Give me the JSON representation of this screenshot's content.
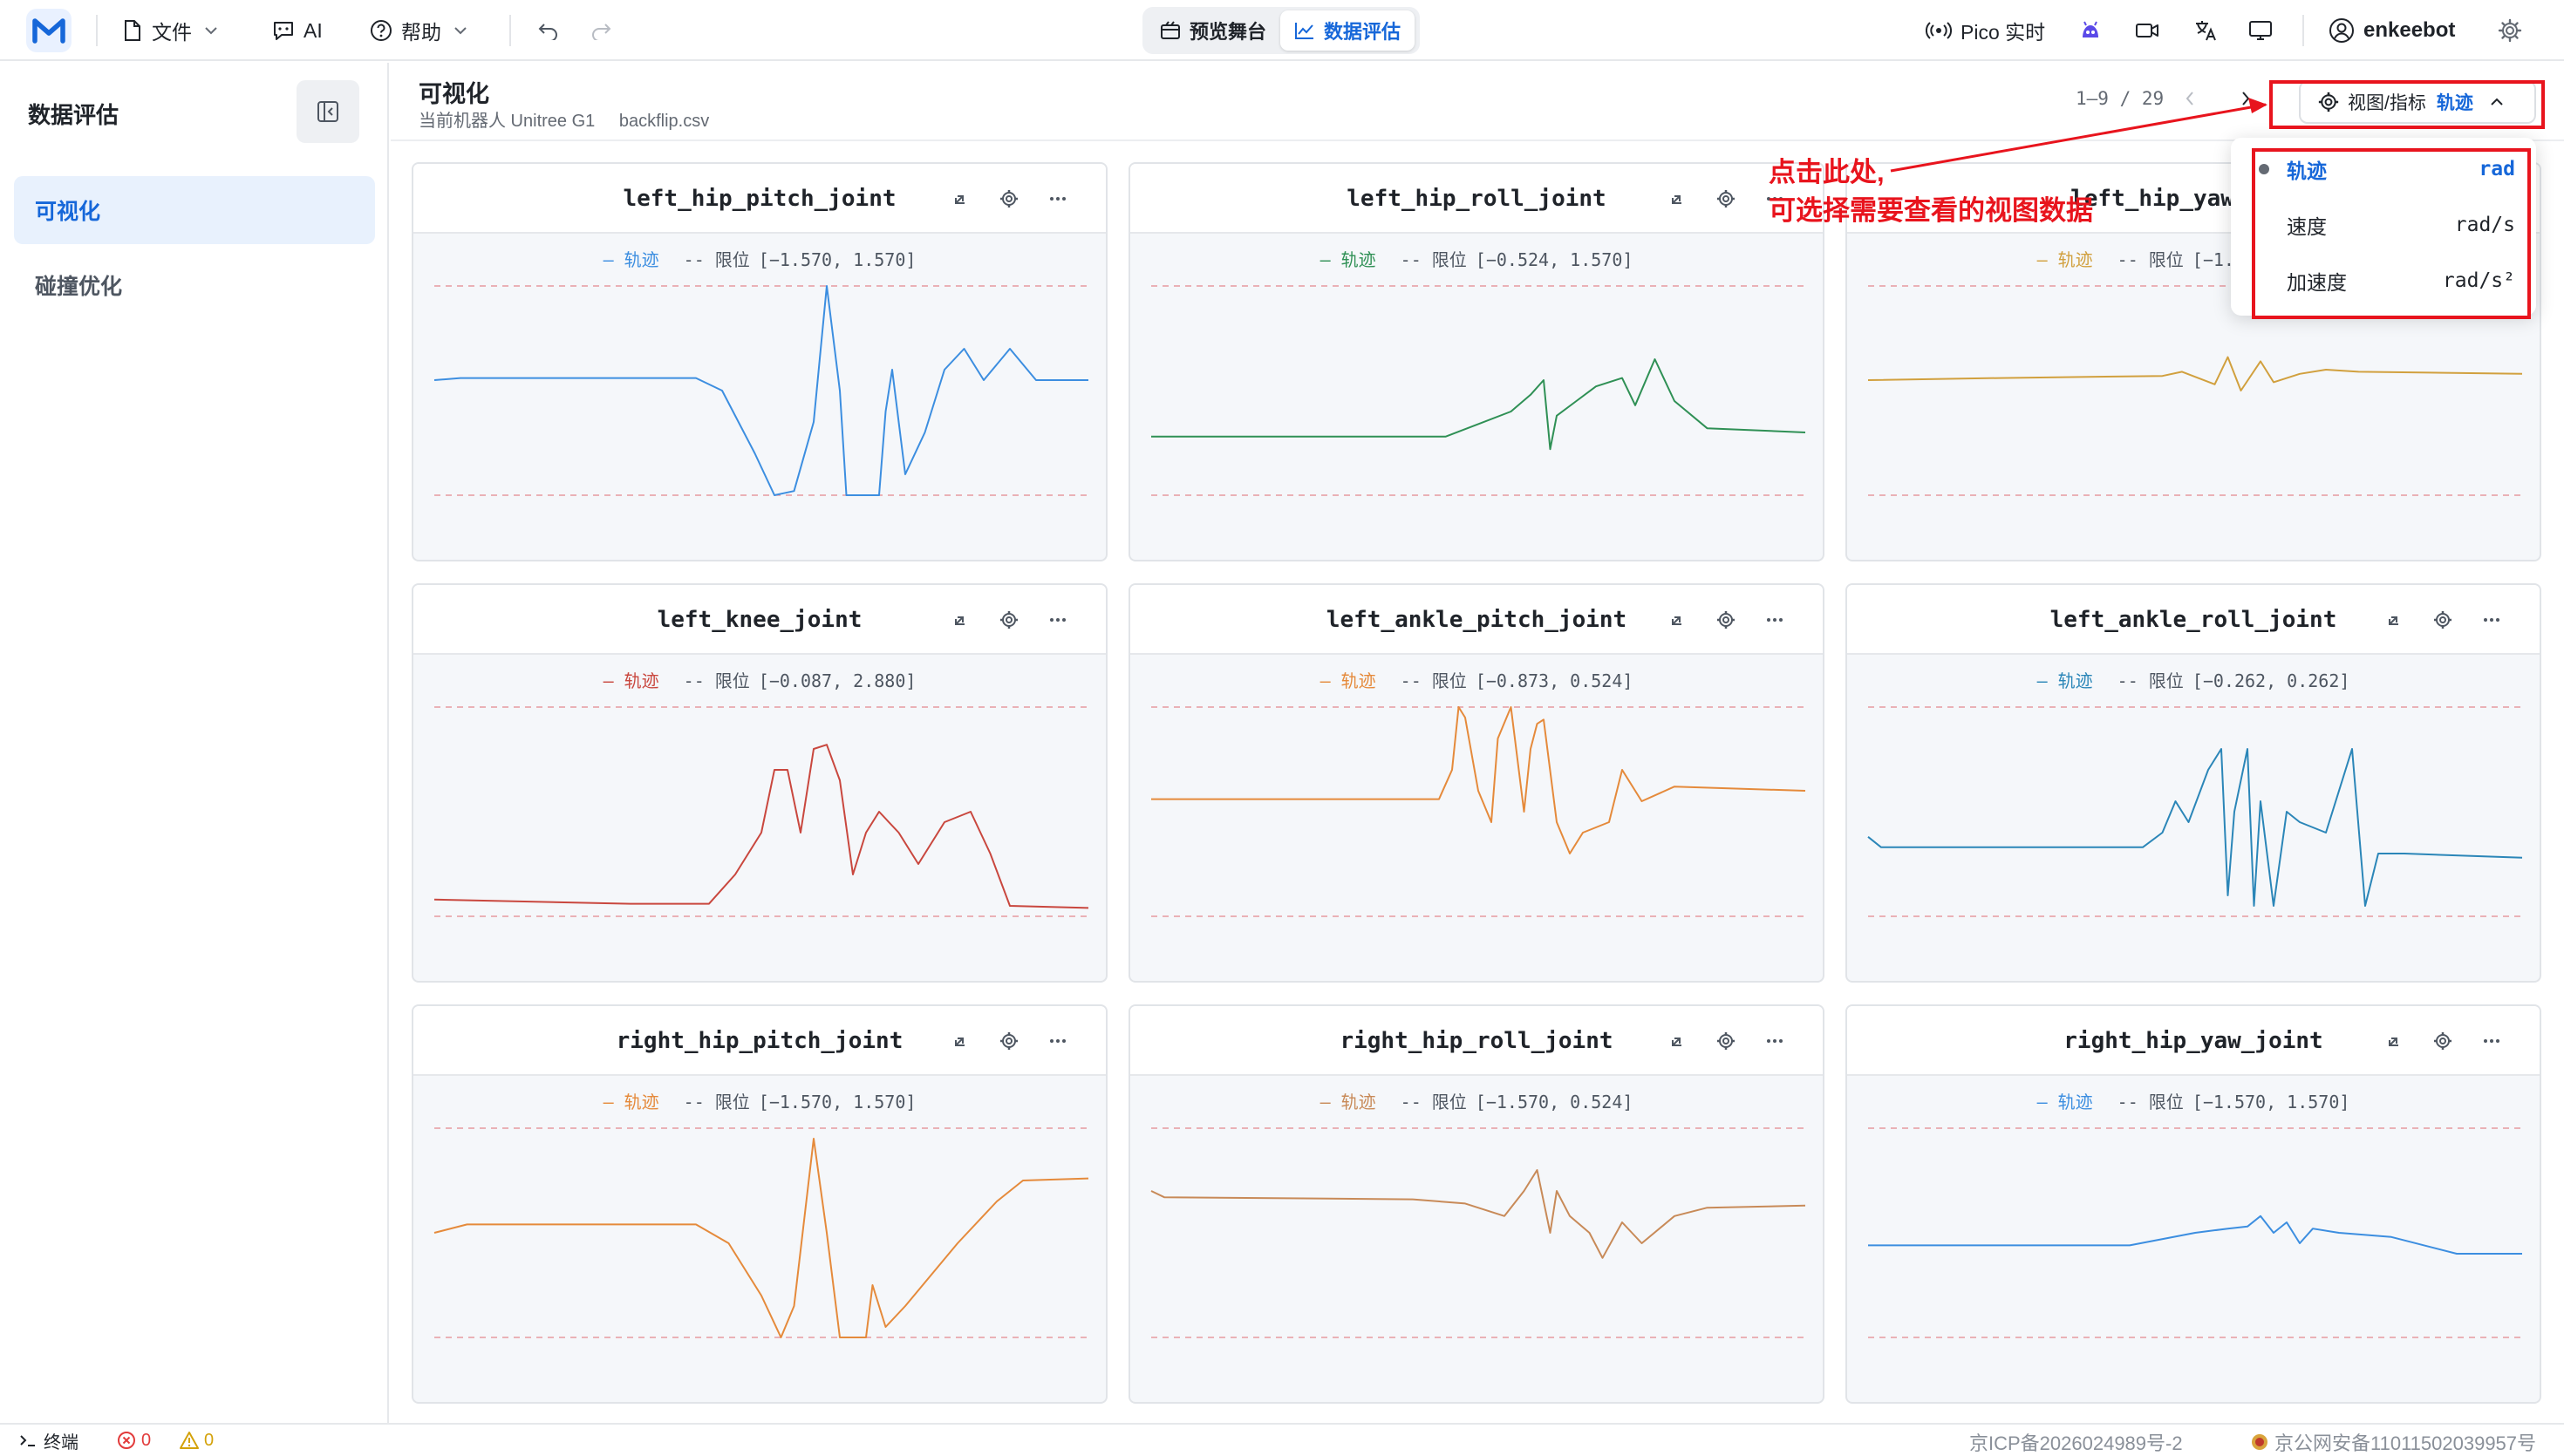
{
  "topbar": {
    "file_label": "文件",
    "ai_label": "AI",
    "help_label": "帮助",
    "modes": [
      {
        "label": "预览舞台",
        "active": false
      },
      {
        "label": "数据评估",
        "active": true
      }
    ],
    "pico_label": "Pico 实时",
    "username": "enkeebot"
  },
  "sidebar": {
    "title": "数据评估",
    "items": [
      {
        "label": "可视化",
        "active": true
      },
      {
        "label": "碰撞优化",
        "active": false
      }
    ]
  },
  "header": {
    "title": "可视化",
    "robot": "当前机器人 Unitree G1",
    "file": "backflip.csv",
    "pager": "1–9 / 29",
    "view_label": "视图/指标",
    "view_value": "轨迹"
  },
  "legend": {
    "trajectory": "– 轨迹",
    "limit_prefix": "-- 限位"
  },
  "colors": {
    "accent": "#1667d9",
    "annotation": "#e8141d",
    "limit_line": "#e79a9f",
    "blue": "#3c8ee0",
    "green": "#2f9055",
    "gold": "#d1a03e",
    "red": "#c9473e",
    "orange": "#e58a3b"
  },
  "cards": [
    {
      "title": "left_hip_pitch_joint",
      "limit": "[−1.570, 1.570]",
      "color": "#3c8ee0"
    },
    {
      "title": "left_hip_roll_joint",
      "limit": "[−0.524, 1.570]",
      "color": "#2f9055"
    },
    {
      "title": "left_hip_yaw_joint",
      "limit": "[−1.570, 1.570]",
      "color": "#d1a03e"
    },
    {
      "title": "left_knee_joint",
      "limit": "[−0.087, 2.880]",
      "color": "#c9473e"
    },
    {
      "title": "left_ankle_pitch_joint",
      "limit": "[−0.873, 0.524]",
      "color": "#e58a3b"
    },
    {
      "title": "left_ankle_roll_joint",
      "limit": "[−0.262, 0.262]",
      "color": "#2b86b8"
    },
    {
      "title": "right_hip_pitch_joint",
      "limit": "[−1.570, 1.570]",
      "color": "#e58a3b"
    },
    {
      "title": "right_hip_roll_joint",
      "limit": "[−1.570, 0.524]",
      "color": "#c88a58"
    },
    {
      "title": "right_hip_yaw_joint",
      "limit": "[−1.570, 1.570]",
      "color": "#3c8ee0"
    }
  ],
  "dropdown": {
    "items": [
      {
        "label": "轨迹",
        "unit": "rad",
        "selected": true
      },
      {
        "label": "速度",
        "unit": "rad/s",
        "selected": false
      },
      {
        "label": "加速度",
        "unit": "rad/s²",
        "selected": false
      }
    ]
  },
  "annotation": {
    "line1": "点击此处,",
    "line2": "可选择需要查看的视图数据"
  },
  "statusbar": {
    "terminal_label": "终端",
    "errors": "0",
    "warnings": "0",
    "icp": "京ICP备2026024989号-2",
    "police": "京公网安备11011502039957号"
  }
}
